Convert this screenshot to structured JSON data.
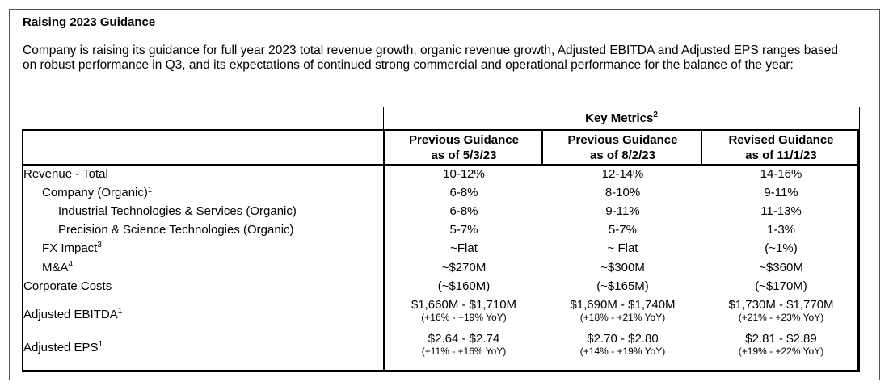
{
  "section": {
    "title": "Raising 2023 Guidance",
    "intro": "Company is raising its guidance for full year 2023 total revenue growth, organic revenue growth, Adjusted EBITDA and Adjusted EPS ranges based on robust performance in Q3, and its expectations of continued strong commercial and operational performance for the balance of the year:"
  },
  "table": {
    "group_header": {
      "label": "Key Metrics",
      "footnote": "2"
    },
    "columns": [
      {
        "line1": "Previous Guidance",
        "line2": "as of 5/3/23"
      },
      {
        "line1": "Previous Guidance",
        "line2": "as of 8/2/23"
      },
      {
        "line1": "Revised Guidance",
        "line2": "as of 11/1/23"
      }
    ],
    "rows": [
      {
        "label": "Revenue - Total",
        "footnote": "",
        "values": [
          "10-12%",
          "12-14%",
          "14-16%"
        ],
        "subs": []
      },
      {
        "label": "Company (Organic)",
        "footnote": "1",
        "values": [
          "6-8%",
          "8-10%",
          "9-11%"
        ],
        "subs": []
      },
      {
        "label": "Industrial Technologies & Services (Organic)",
        "footnote": "",
        "values": [
          "6-8%",
          "9-11%",
          "11-13%"
        ],
        "subs": []
      },
      {
        "label": "Precision & Science Technologies (Organic)",
        "footnote": "",
        "values": [
          "5-7%",
          "5-7%",
          "1-3%"
        ],
        "subs": []
      },
      {
        "label": "FX Impact",
        "footnote": "3",
        "values": [
          "~Flat",
          "~ Flat",
          "(~1%)"
        ],
        "subs": []
      },
      {
        "label": "M&A",
        "footnote": "4",
        "values": [
          "~$270M",
          "~$300M",
          "~$360M"
        ],
        "subs": []
      },
      {
        "label": "Corporate Costs",
        "footnote": "",
        "values": [
          "(~$160M)",
          "(~$165M)",
          "(~$170M)"
        ],
        "subs": []
      },
      {
        "label": "Adjusted EBITDA",
        "footnote": "1",
        "values": [
          "$1,660M - $1,710M",
          "$1,690M - $1,740M",
          "$1,730M - $1,770M"
        ],
        "subs": [
          "(+16% - +19% YoY)",
          "(+18% - +21% YoY)",
          "(+21% - +23% YoY)"
        ]
      },
      {
        "label": "Adjusted EPS",
        "footnote": "1",
        "values": [
          "$2.64 - $2.74",
          "$2.70 - $2.80",
          "$2.81 - $2.89"
        ],
        "subs": [
          "(+11% - +16% YoY)",
          "(+14% - +19% YoY)",
          "(+19% - +22% YoY)"
        ]
      }
    ]
  }
}
